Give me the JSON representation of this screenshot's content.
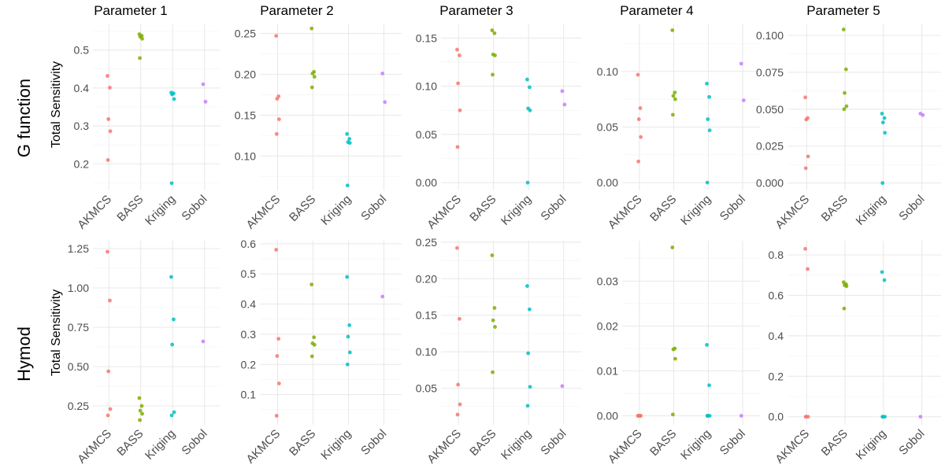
{
  "figure": {
    "panel_titles": [
      "Parameter 1",
      "Parameter 2",
      "Parameter 3",
      "Parameter 4",
      "Parameter 5"
    ],
    "row_labels": [
      "G function",
      "Hymod"
    ],
    "y_title": "Total Sensitivity"
  },
  "chart_data": {
    "type": "scatter",
    "layout": "facet grid, 2 rows x 5 columns, free y scales",
    "categories": [
      "AKMCS",
      "BASS",
      "Kriging",
      "Sobol"
    ],
    "colors": {
      "AKMCS": "#F8766D",
      "BASS": "#7CAE00",
      "Kriging": "#00BFC4",
      "Sobol": "#C77CFF"
    },
    "grid": true,
    "legend": "none",
    "panels": [
      {
        "row": "G function",
        "col": "Parameter 1",
        "ylim": [
          0.13,
          0.57
        ],
        "yticks": [
          0.2,
          0.3,
          0.4,
          0.5
        ],
        "ytick_labels": [
          "0.2",
          "0.3",
          "0.4",
          "0.5"
        ],
        "points": {
          "AKMCS": [
            0.432,
            0.401,
            0.318,
            0.286,
            0.21
          ],
          "BASS": [
            0.542,
            0.538,
            0.535,
            0.53,
            0.479
          ],
          "Kriging": [
            0.388,
            0.386,
            0.383,
            0.371,
            0.149
          ],
          "Sobol": [
            0.41,
            0.364
          ]
        }
      },
      {
        "row": "G function",
        "col": "Parameter 2",
        "ylim": [
          0.058,
          0.262
        ],
        "yticks": [
          0.1,
          0.15,
          0.2,
          0.25
        ],
        "ytick_labels": [
          "0.10",
          "0.15",
          "0.20",
          "0.25"
        ],
        "points": {
          "AKMCS": [
            0.247,
            0.173,
            0.17,
            0.145,
            0.127
          ],
          "BASS": [
            0.256,
            0.203,
            0.201,
            0.197,
            0.184
          ],
          "Kriging": [
            0.127,
            0.121,
            0.117,
            0.116,
            0.064
          ],
          "Sobol": [
            0.201,
            0.166
          ]
        }
      },
      {
        "row": "G function",
        "col": "Parameter 3",
        "ylim": [
          -0.008,
          0.165
        ],
        "yticks": [
          0,
          0.05,
          0.1,
          0.15
        ],
        "ytick_labels": [
          "0.00",
          "0.05",
          "0.10",
          "0.15"
        ],
        "points": {
          "AKMCS": [
            0.138,
            0.132,
            0.103,
            0.075,
            0.037
          ],
          "BASS": [
            0.158,
            0.155,
            0.133,
            0.132,
            0.112
          ],
          "Kriging": [
            0.107,
            0.099,
            0.077,
            0.075,
            0.0
          ],
          "Sobol": [
            0.095,
            0.081
          ]
        }
      },
      {
        "row": "G function",
        "col": "Parameter 4",
        "ylim": [
          -0.007,
          0.143
        ],
        "yticks": [
          0,
          0.05,
          0.1
        ],
        "ytick_labels": [
          "0.00",
          "0.05",
          "0.10"
        ],
        "points": {
          "AKMCS": [
            0.097,
            0.067,
            0.057,
            0.041,
            0.019
          ],
          "BASS": [
            0.137,
            0.081,
            0.078,
            0.075,
            0.061
          ],
          "Kriging": [
            0.089,
            0.077,
            0.057,
            0.047,
            0.0
          ],
          "Sobol": [
            0.107,
            0.074
          ]
        }
      },
      {
        "row": "G function",
        "col": "Parameter 5",
        "ylim": [
          -0.005,
          0.108
        ],
        "yticks": [
          0,
          0.025,
          0.05,
          0.075,
          0.1
        ],
        "ytick_labels": [
          "0.000",
          "0.025",
          "0.050",
          "0.075",
          "0.100"
        ],
        "points": {
          "AKMCS": [
            0.058,
            0.044,
            0.043,
            0.018,
            0.01
          ],
          "BASS": [
            0.104,
            0.077,
            0.061,
            0.052,
            0.05
          ],
          "Kriging": [
            0.047,
            0.044,
            0.041,
            0.034,
            0.0
          ],
          "Sobol": [
            0.047,
            0.046
          ]
        }
      },
      {
        "row": "Hymod",
        "col": "Parameter 1",
        "ylim": [
          0.13,
          1.3
        ],
        "yticks": [
          0.25,
          0.5,
          0.75,
          1.0,
          1.25
        ],
        "ytick_labels": [
          "0.25",
          "0.50",
          "0.75",
          "1.00",
          "1.25"
        ],
        "points": {
          "AKMCS": [
            1.23,
            0.92,
            0.47,
            0.23,
            0.19
          ],
          "BASS": [
            0.3,
            0.25,
            0.22,
            0.2,
            0.16
          ],
          "Kriging": [
            1.07,
            0.8,
            0.64,
            0.21,
            0.19
          ],
          "Sobol": [
            0.66
          ]
        }
      },
      {
        "row": "Hymod",
        "col": "Parameter 2",
        "ylim": [
          0.0,
          0.61
        ],
        "yticks": [
          0.1,
          0.2,
          0.3,
          0.4,
          0.5,
          0.6
        ],
        "ytick_labels": [
          "0.1",
          "0.2",
          "0.3",
          "0.4",
          "0.5",
          "0.6"
        ],
        "points": {
          "AKMCS": [
            0.58,
            0.285,
            0.228,
            0.137,
            0.03
          ],
          "BASS": [
            0.465,
            0.29,
            0.27,
            0.265,
            0.227
          ],
          "Kriging": [
            0.49,
            0.33,
            0.292,
            0.24,
            0.2
          ],
          "Sobol": [
            0.425
          ]
        }
      },
      {
        "row": "Hymod",
        "col": "Parameter 3",
        "ylim": [
          0.0,
          0.252
        ],
        "yticks": [
          0.05,
          0.1,
          0.15,
          0.2,
          0.25
        ],
        "ytick_labels": [
          "0.05",
          "0.10",
          "0.15",
          "0.20",
          "0.25"
        ],
        "points": {
          "AKMCS": [
            0.242,
            0.145,
            0.055,
            0.028,
            0.014
          ],
          "BASS": [
            0.232,
            0.16,
            0.143,
            0.134,
            0.072
          ],
          "Kriging": [
            0.19,
            0.158,
            0.098,
            0.052,
            0.026
          ],
          "Sobol": [
            0.053
          ]
        }
      },
      {
        "row": "Hymod",
        "col": "Parameter 4",
        "ylim": [
          -0.002,
          0.039
        ],
        "yticks": [
          0,
          0.01,
          0.02,
          0.03
        ],
        "ytick_labels": [
          "0.00",
          "0.01",
          "0.02",
          "0.03"
        ],
        "points": {
          "AKMCS": [
            0.0,
            0.0,
            0.0,
            0.0,
            0.0
          ],
          "BASS": [
            0.0375,
            0.015,
            0.0148,
            0.0127,
            0.0003
          ],
          "Kriging": [
            0.0158,
            0.0068,
            0.0,
            0.0,
            0.0
          ],
          "Sobol": [
            0.0
          ]
        }
      },
      {
        "row": "Hymod",
        "col": "Parameter 5",
        "ylim": [
          -0.04,
          0.87
        ],
        "yticks": [
          0,
          0.2,
          0.4,
          0.6,
          0.8
        ],
        "ytick_labels": [
          "0.0",
          "0.2",
          "0.4",
          "0.6",
          "0.8"
        ],
        "points": {
          "AKMCS": [
            0.83,
            0.73,
            0.0,
            0.0,
            0.0
          ],
          "BASS": [
            0.665,
            0.655,
            0.65,
            0.645,
            0.535
          ],
          "Kriging": [
            0.715,
            0.675,
            0.0,
            0.0,
            0.0
          ],
          "Sobol": [
            0.0
          ]
        }
      }
    ]
  }
}
